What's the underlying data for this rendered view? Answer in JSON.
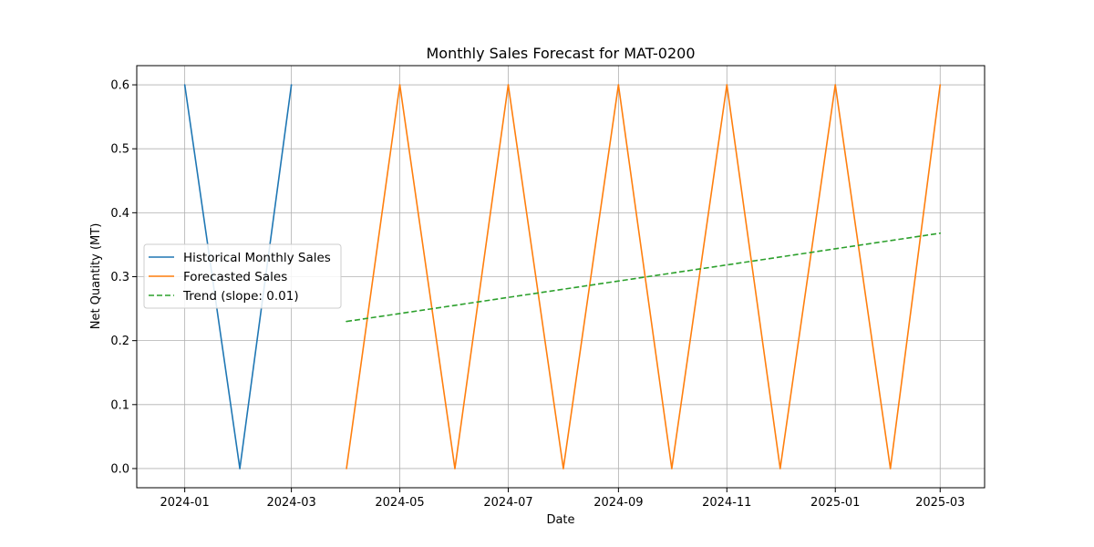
{
  "chart_data": {
    "type": "line",
    "title": "Monthly Sales Forecast for MAT-0200",
    "xlabel": "Date",
    "ylabel": "Net Quantity (MT)",
    "xlim": [
      "2023-12-05",
      "2025-03-26"
    ],
    "ylim": [
      -0.03,
      0.63
    ],
    "grid": true,
    "legend_position": "center-left",
    "x_ticks": [
      "2024-01",
      "2024-03",
      "2024-05",
      "2024-07",
      "2024-09",
      "2024-11",
      "2025-01",
      "2025-03"
    ],
    "y_ticks": [
      0.0,
      0.1,
      0.2,
      0.3,
      0.4,
      0.5,
      0.6
    ],
    "series": [
      {
        "name": "Historical Monthly Sales",
        "color": "#1f77b4",
        "style": "solid",
        "x": [
          "2024-01-01",
          "2024-02-01",
          "2024-03-01"
        ],
        "y": [
          0.6,
          0.0,
          0.6
        ]
      },
      {
        "name": "Forecasted Sales",
        "color": "#ff7f0e",
        "style": "solid",
        "x": [
          "2024-04-01",
          "2024-05-01",
          "2024-06-01",
          "2024-07-01",
          "2024-08-01",
          "2024-09-01",
          "2024-10-01",
          "2024-11-01",
          "2024-12-01",
          "2025-01-01",
          "2025-02-01",
          "2025-03-01"
        ],
        "y": [
          0.0,
          0.6,
          0.0,
          0.6,
          0.0,
          0.6,
          0.0,
          0.6,
          0.0,
          0.6,
          0.0,
          0.6
        ]
      },
      {
        "name": "Trend (slope: 0.01)",
        "color": "#2ca02c",
        "style": "dashed",
        "x": [
          "2024-04-01",
          "2025-03-01"
        ],
        "y": [
          0.23,
          0.368
        ]
      }
    ]
  }
}
